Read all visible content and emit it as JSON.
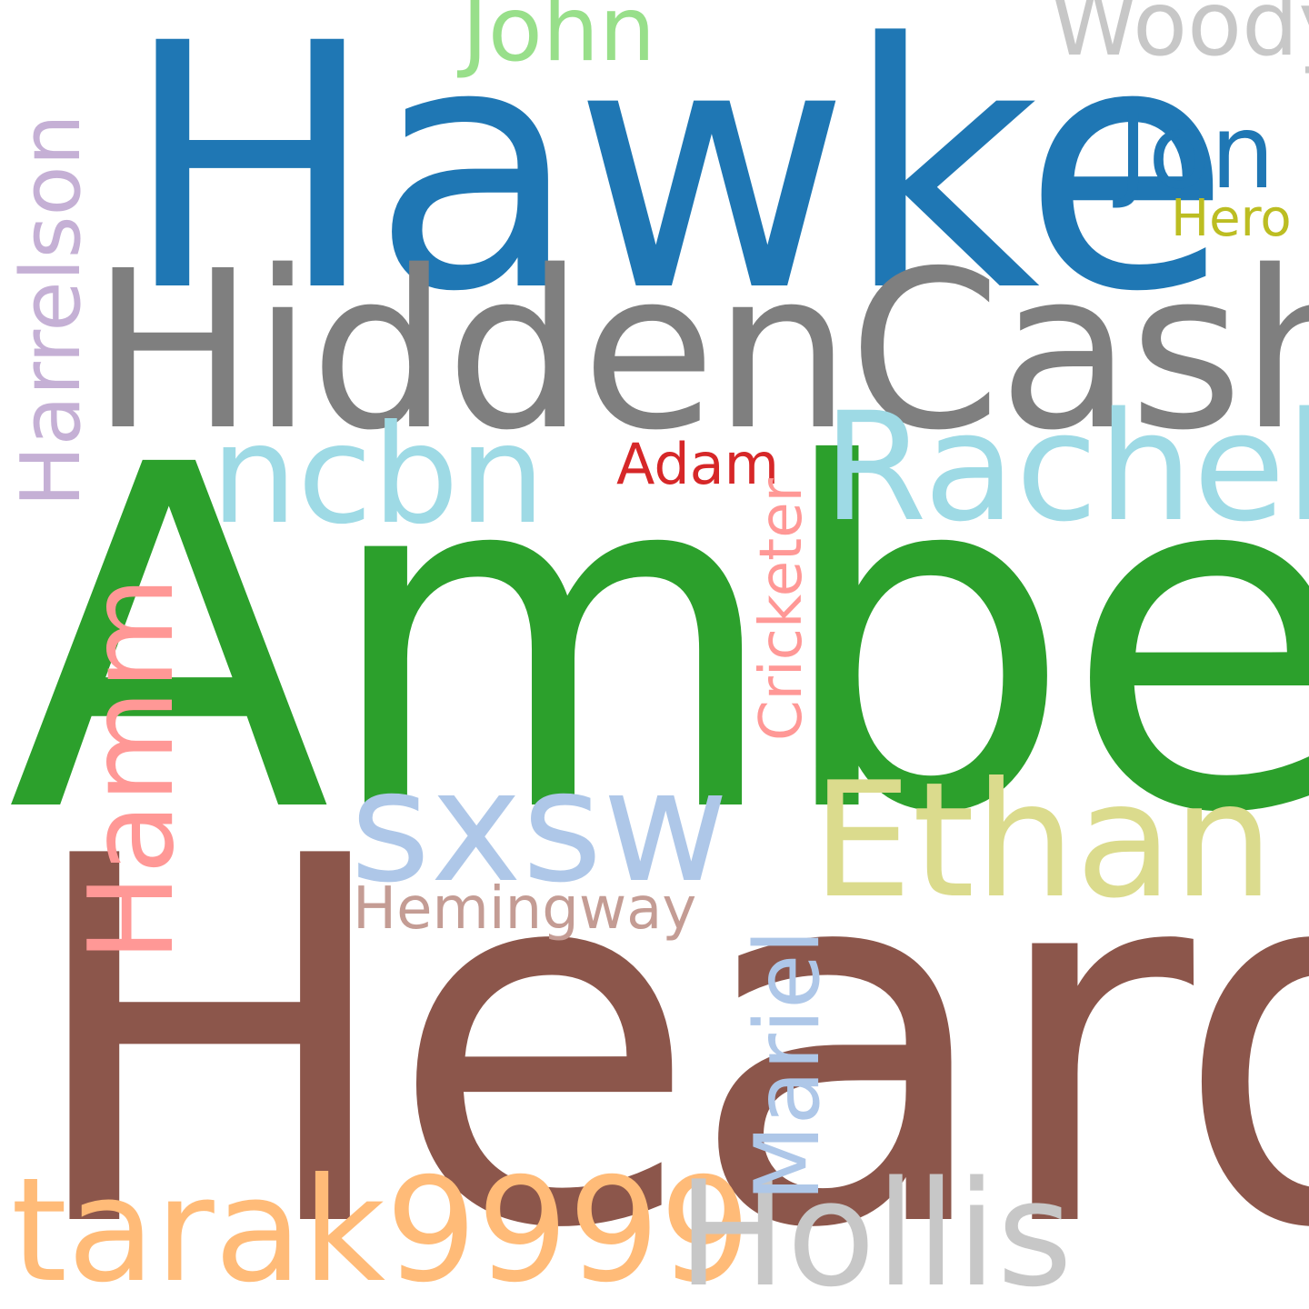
{
  "words": {
    "hawke": {
      "text": "Hawke",
      "color": "#1f77b4"
    },
    "amber": {
      "text": "Amber",
      "color": "#2ca02c"
    },
    "heard": {
      "text": "Heard",
      "color": "#8c564b"
    },
    "hiddencash": {
      "text": "HiddenCash",
      "color": "#7f7f7f"
    },
    "sxsw": {
      "text": "sxsw",
      "color": "#aec7e8"
    },
    "ethan": {
      "text": "Ethan",
      "color": "#dbdb8d"
    },
    "rachel": {
      "text": "Rachel",
      "color": "#9edae5"
    },
    "ncbn": {
      "text": "ncbn",
      "color": "#9edae5"
    },
    "tarak": {
      "text": "tarak9999",
      "color": "#ffbb78"
    },
    "hollis": {
      "text": "Hollis",
      "color": "#c7c7c7"
    },
    "jon": {
      "text": "Jon",
      "color": "#1f77b4"
    },
    "john": {
      "text": "John",
      "color": "#98df8a"
    },
    "woody": {
      "text": "Woody",
      "color": "#c7c7c7"
    },
    "hero": {
      "text": "Hero",
      "color": "#bcbd22"
    },
    "adam": {
      "text": "Adam",
      "color": "#d62728"
    },
    "hemingway": {
      "text": "Hemingway",
      "color": "#c49c94"
    },
    "harrelson": {
      "text": "Harrelson",
      "color": "#c5b0d5"
    },
    "hamm": {
      "text": "Hamm",
      "color": "#ff9896"
    },
    "cricketer": {
      "text": "Cricketer",
      "color": "#ff9896"
    },
    "mariel": {
      "text": "Mariel",
      "color": "#aec7e8"
    }
  }
}
